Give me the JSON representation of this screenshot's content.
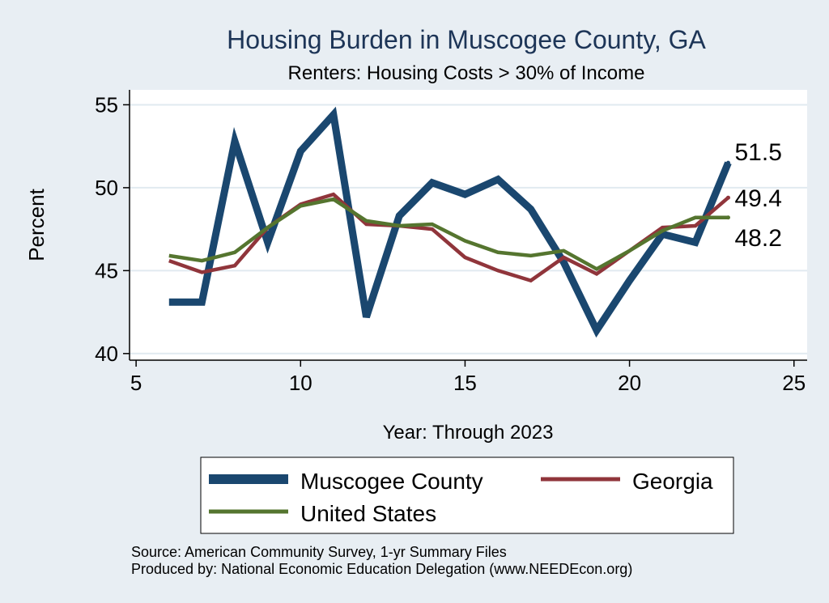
{
  "colors": {
    "background": "#e8eef3",
    "plot_background": "#ffffff",
    "title": "#1d3557",
    "muscogee": "#1a476f",
    "georgia": "#90353b",
    "us": "#55752f",
    "grid": "#e1eaf0",
    "axis": "#000000"
  },
  "chart_data": {
    "type": "line",
    "title": "Housing Burden in Muscogee County, GA",
    "subtitle": "Renters: Housing Costs > 30% of Income",
    "xlabel": "Year: Through 2023",
    "ylabel": "Percent",
    "xlim": [
      4.8,
      25.4
    ],
    "ylim": [
      39.6,
      55.9
    ],
    "xticks": [
      5,
      10,
      15,
      20,
      25
    ],
    "yticks": [
      40,
      45,
      50,
      55
    ],
    "grid": true,
    "legend_position": "bottom",
    "series": [
      {
        "name": "Muscogee County",
        "key": "muscogee",
        "x": [
          6,
          7,
          8,
          9,
          10,
          11,
          12,
          13,
          14,
          15,
          16,
          17,
          18,
          19,
          20,
          21,
          22,
          23
        ],
        "values": [
          43.1,
          43.1,
          52.8,
          46.7,
          52.2,
          54.4,
          42.2,
          48.3,
          50.3,
          49.6,
          50.5,
          48.7,
          45.5,
          41.4,
          44.4,
          47.2,
          46.7,
          51.5
        ],
        "end_label": "51.5"
      },
      {
        "name": "Georgia",
        "key": "georgia",
        "x": [
          6,
          7,
          8,
          9,
          10,
          11,
          12,
          13,
          14,
          15,
          16,
          17,
          18,
          19,
          20,
          21,
          22,
          23
        ],
        "values": [
          45.6,
          44.9,
          45.3,
          47.6,
          49.0,
          49.6,
          47.8,
          47.7,
          47.5,
          45.8,
          45.0,
          44.4,
          45.8,
          44.8,
          46.2,
          47.6,
          47.7,
          49.4
        ],
        "end_label": "49.4"
      },
      {
        "name": "United States",
        "key": "us",
        "x": [
          6,
          7,
          8,
          9,
          10,
          11,
          12,
          13,
          14,
          15,
          16,
          17,
          18,
          19,
          20,
          21,
          22,
          23
        ],
        "values": [
          45.9,
          45.6,
          46.1,
          47.6,
          48.9,
          49.3,
          48.0,
          47.7,
          47.8,
          46.8,
          46.1,
          45.9,
          46.2,
          45.1,
          46.2,
          47.4,
          48.2,
          48.2
        ],
        "end_label": "48.2"
      }
    ]
  },
  "legend": {
    "items": [
      {
        "label": "Muscogee County",
        "key": "muscogee"
      },
      {
        "label": "Georgia",
        "key": "georgia"
      },
      {
        "label": "United States",
        "key": "us"
      }
    ]
  },
  "notes": {
    "source": "Source: American Community Survey, 1-yr Summary Files",
    "produced": "Produced by: National Economic Education Delegation (www.NEEDEcon.org)"
  }
}
